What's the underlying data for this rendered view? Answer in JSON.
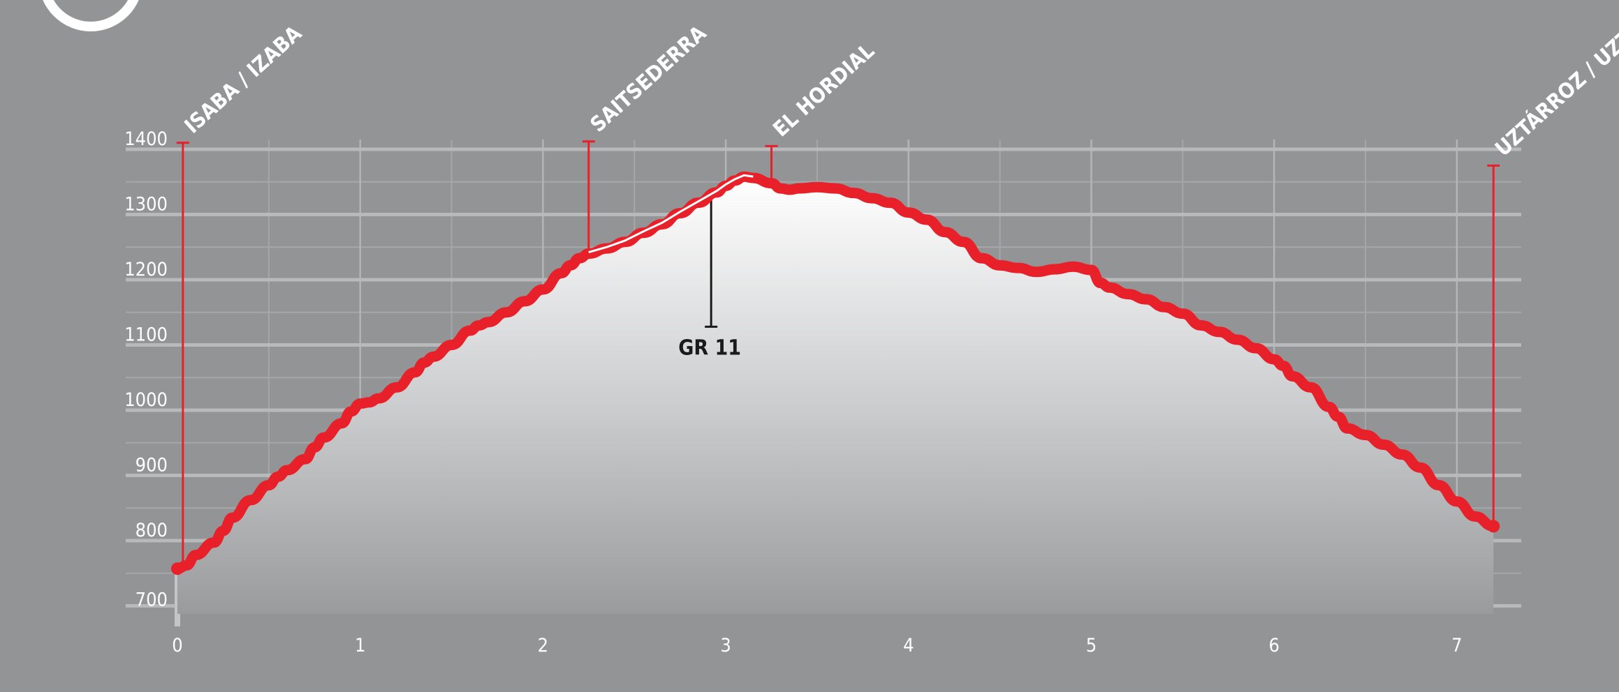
{
  "chart_data": {
    "type": "area",
    "title": "",
    "xlabel": "",
    "ylabel": "",
    "xlim": [
      0,
      7.5
    ],
    "ylim": [
      690,
      1410
    ],
    "x_ticks": [
      0,
      1,
      2,
      3,
      4,
      5,
      6,
      7
    ],
    "y_ticks": [
      700,
      800,
      900,
      1000,
      1100,
      1200,
      1300,
      1400
    ],
    "grid": true,
    "series": [
      {
        "color": "#e8202a",
        "x": [
          0.0,
          0.05,
          0.1,
          0.2,
          0.25,
          0.3,
          0.4,
          0.5,
          0.55,
          0.6,
          0.7,
          0.75,
          0.8,
          0.9,
          0.95,
          1.0,
          1.05,
          1.1,
          1.2,
          1.3,
          1.35,
          1.4,
          1.5,
          1.6,
          1.65,
          1.7,
          1.8,
          1.9,
          2.0,
          2.1,
          2.15,
          2.2,
          2.25,
          2.35,
          2.45,
          2.55,
          2.65,
          2.75,
          2.85,
          2.95,
          3.0,
          3.05,
          3.1,
          3.15,
          3.25,
          3.3,
          3.35,
          3.4,
          3.5,
          3.6,
          3.7,
          3.8,
          3.9,
          4.0,
          4.1,
          4.2,
          4.3,
          4.4,
          4.5,
          4.6,
          4.7,
          4.8,
          4.9,
          5.0,
          5.05,
          5.1,
          5.2,
          5.3,
          5.4,
          5.5,
          5.6,
          5.7,
          5.8,
          5.9,
          6.0,
          6.05,
          6.1,
          6.2,
          6.3,
          6.35,
          6.4,
          6.5,
          6.6,
          6.7,
          6.8,
          6.9,
          7.0,
          7.1,
          7.2
        ],
        "y": [
          757,
          762,
          778,
          797,
          815,
          835,
          862,
          885,
          898,
          908,
          925,
          943,
          958,
          980,
          998,
          1010,
          1012,
          1018,
          1035,
          1058,
          1073,
          1082,
          1100,
          1122,
          1130,
          1135,
          1150,
          1167,
          1185,
          1210,
          1222,
          1233,
          1240,
          1248,
          1258,
          1272,
          1285,
          1302,
          1318,
          1334,
          1344,
          1352,
          1358,
          1356,
          1348,
          1340,
          1338,
          1340,
          1342,
          1340,
          1333,
          1325,
          1318,
          1303,
          1292,
          1273,
          1258,
          1233,
          1222,
          1218,
          1212,
          1216,
          1220,
          1215,
          1195,
          1188,
          1178,
          1170,
          1158,
          1148,
          1130,
          1120,
          1108,
          1095,
          1078,
          1068,
          1052,
          1035,
          1005,
          990,
          972,
          962,
          947,
          932,
          912,
          885,
          860,
          837,
          822
        ]
      }
    ],
    "annotations": [
      {
        "text": "ISABA / IZABA",
        "x": 0.03,
        "y": 1410
      },
      {
        "text": "SAITSEDERRA",
        "x": 2.25,
        "y": 1412
      },
      {
        "text": "EL HORDIAL",
        "x": 3.25,
        "y": 1405
      },
      {
        "text": "UZTÁRROZ / UZTARROZE",
        "x": 7.2,
        "y": 1375
      },
      {
        "text": "GR 11",
        "x": 2.92,
        "y": 1128
      }
    ]
  }
}
